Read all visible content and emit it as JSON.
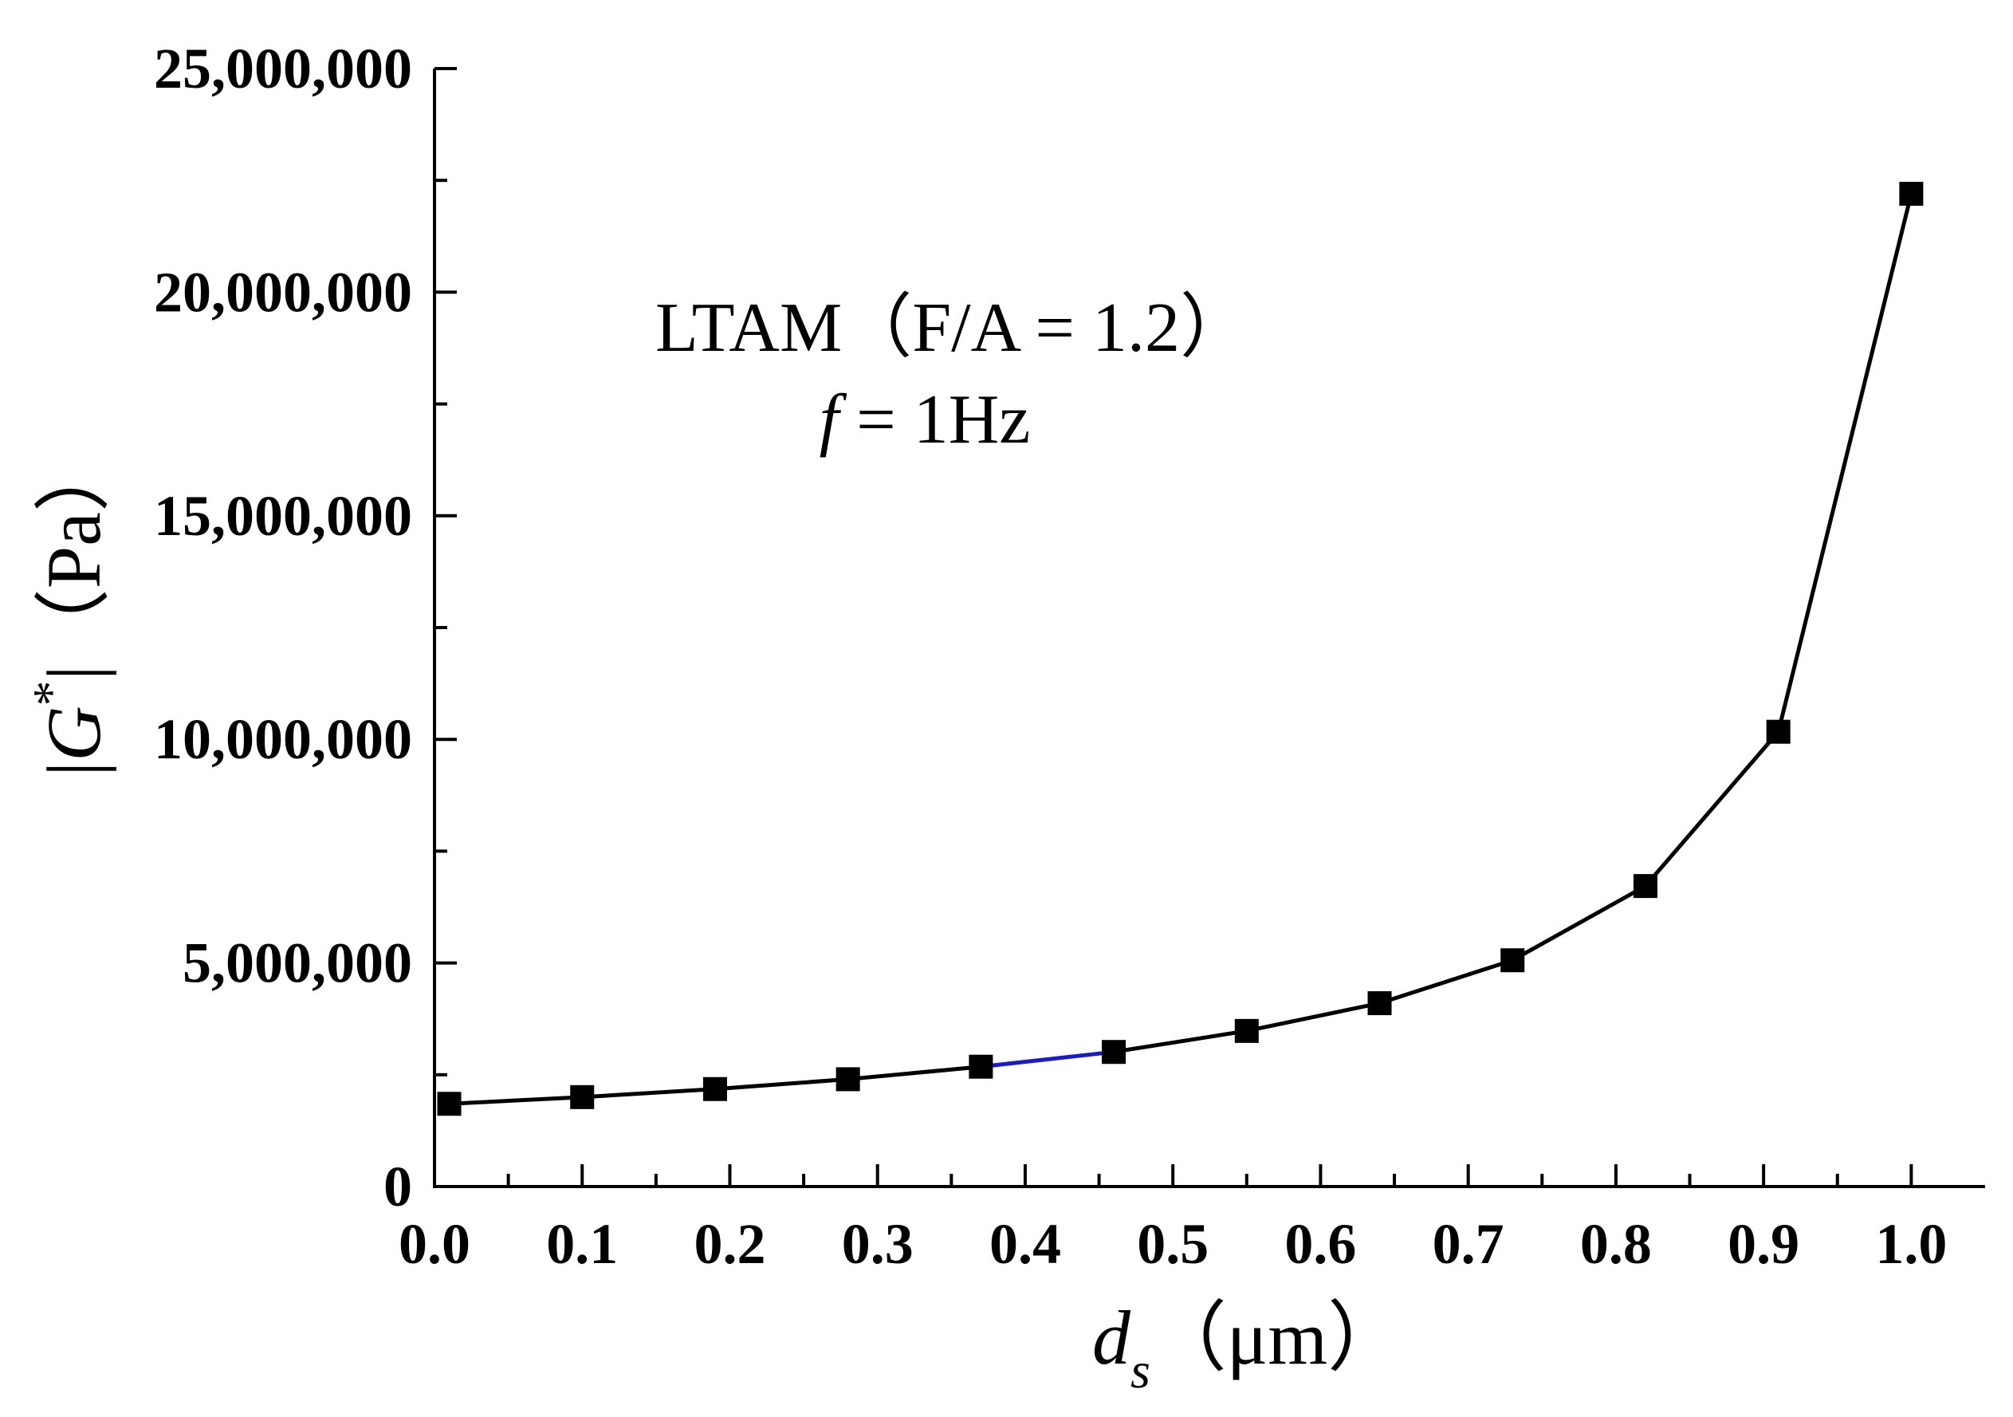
{
  "chart_data": {
    "type": "line",
    "title": "",
    "annotations": [
      "LTAM（F/A = 1.2）"
    ],
    "freq_label": {
      "symbol": "f",
      "text": " = 1Hz"
    },
    "xlabel": {
      "symbol": "d",
      "subscript": "s",
      "unit": "（μm）"
    },
    "ylabel": {
      "prefix": "|",
      "symbol": "G",
      "superscript": "*",
      "suffix": "|（Pa）"
    },
    "xlim": [
      0.0,
      1.05
    ],
    "ylim": [
      0,
      25000000
    ],
    "x_ticks": [
      0.0,
      0.1,
      0.2,
      0.3,
      0.4,
      0.5,
      0.6,
      0.7,
      0.8,
      0.9,
      1.0
    ],
    "x_tick_labels": [
      "0.0",
      "0.1",
      "0.2",
      "0.3",
      "0.4",
      "0.5",
      "0.6",
      "0.7",
      "0.8",
      "0.9",
      "1.0"
    ],
    "y_ticks": [
      0,
      5000000,
      10000000,
      15000000,
      20000000,
      25000000
    ],
    "y_tick_labels": [
      "0",
      "5,000,000",
      "10,000,000",
      "15,000,000",
      "20,000,000",
      "25,000,000"
    ],
    "series": [
      {
        "name": "|G*|",
        "marker": "square",
        "color": "#000000",
        "highlight_segment": {
          "index": 4,
          "color": "#1a1acc"
        },
        "x": [
          0.01,
          0.1,
          0.19,
          0.28,
          0.37,
          0.46,
          0.55,
          0.64,
          0.73,
          0.82,
          0.91,
          1.0
        ],
        "y": [
          1850000,
          2000000,
          2180000,
          2400000,
          2680000,
          3010000,
          3480000,
          4100000,
          5060000,
          6720000,
          10170000,
          22200000
        ]
      }
    ]
  }
}
